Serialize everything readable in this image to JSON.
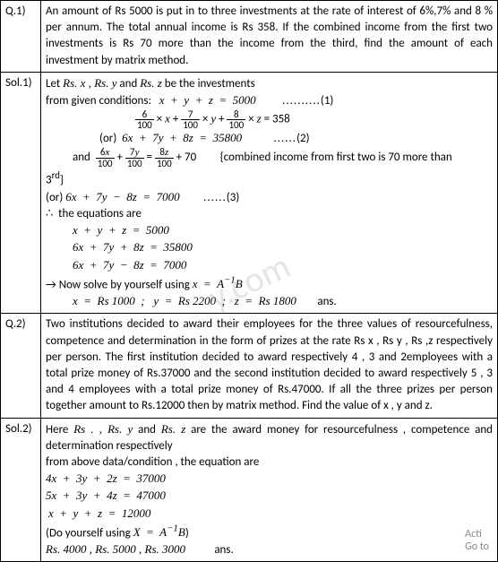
{
  "rows": [
    {
      "label": "Q.1)",
      "lines": [
        "An amount of Rs 5000 is put in to three investments at the rate of interest of 6%,7% and 8 % per annum. The total annual income is Rs 358. If the combined income from the first two investments is Rs 70 more than the income from the third, find the amount of each investment by matrix method."
      ]
    },
    {
      "label": "Sol.1)",
      "lines": [
        "Let <span class='eq'>Rs. x , Rs. y</span> and <span class='eq'>Rs. z</span> be the investments",
        "from given conditions:&nbsp;&nbsp;&nbsp;<span class='eq'>x &nbsp;+&nbsp; y &nbsp;+&nbsp; z &nbsp;=&nbsp; 5000</span>&nbsp;&nbsp;&nbsp;&nbsp;&nbsp;&nbsp;&nbsp;&nbsp;&nbsp;&nbsp;<span class='dotted'>..........</span>(1)",
        "<span class='indent3'></span><span class='frac'><span class='num'>6</span><span class='den'>100</span></span> × <span class='eq'>x</span> + <span class='frac'><span class='num'>7</span><span class='den'>100</span></span> × <span class='eq'>y</span> + <span class='frac'><span class='num'>8</span><span class='den'>100</span></span> × <span class='eq'>z</span> = 358",
        "<span class='indent2'></span>(or)&nbsp;&nbsp;<span class='eq'>6x &nbsp;+&nbsp; 7y &nbsp;+&nbsp; 8z &nbsp;=&nbsp; 35800</span>&nbsp;&nbsp;&nbsp;&nbsp;&nbsp;&nbsp;&nbsp;&nbsp;&nbsp;&nbsp;&nbsp;&nbsp;<span class='dotted'>......</span>(2)",
        "<span class='indent'></span>and&nbsp;&nbsp;<span class='frac'><span class='num'>6<span class='eq'>x</span></span><span class='den'>100</span></span> + <span class='frac'><span class='num'>7<span class='eq'>y</span></span><span class='den'>100</span></span> = <span class='frac'><span class='num'>8<span class='eq'>z</span></span><span class='den'>100</span></span> + 70&nbsp;&nbsp;&nbsp;&nbsp;&nbsp;&nbsp;&nbsp;&nbsp;&nbsp;{combined income from first two is 70 more than",
        "3<sup>rd</sup>}",
        "(or) <span class='eq'>6x &nbsp;+&nbsp; 7y &nbsp;−&nbsp; 8z &nbsp;=&nbsp; 7000</span>&nbsp;&nbsp;&nbsp;&nbsp;&nbsp;&nbsp;&nbsp;&nbsp;&nbsp;<span class='dotted'>......</span>(3)",
        "∴&nbsp;&nbsp;the equations are",
        "<span class='indent'></span><span class='eq'>x &nbsp;+&nbsp; y &nbsp;+&nbsp; z &nbsp;=&nbsp; 5000</span>",
        "<span class='indent'></span><span class='eq'>6x &nbsp;+&nbsp; 7y &nbsp;+&nbsp; 8z &nbsp;=&nbsp; 35800</span>",
        "<span class='indent'></span><span class='eq'>6x &nbsp;+&nbsp; 7y &nbsp;−&nbsp; 8z &nbsp;=&nbsp; 7000</span>",
        "→ Now solve by yourself using <span class='eq'>x &nbsp;=&nbsp; A<sup>−1</sup>B</span>",
        "<span class='indent'></span><span class='eq'>x &nbsp;=&nbsp; Rs 1000 &nbsp;;&nbsp;&nbsp; y &nbsp;=&nbsp; Rs 2200 &nbsp;;&nbsp;&nbsp; z &nbsp;=&nbsp; Rs 1800</span>&nbsp;&nbsp;&nbsp;&nbsp;&nbsp;&nbsp;&nbsp;&nbsp;ans."
      ]
    },
    {
      "label": "Q.2)",
      "lines": [
        "Two institutions decided to award their employees for the three values of resourcefulness, competence and determination in the form of prizes at the rate Rs x , Rs y , Rs ,z respectively per person. The first institution decided to award respectively 4 , 3 and 2employees with a total prize money of Rs.37000 and the second institution decided to award respectively 5 , 3 and 4 employees with a total prize money of Rs.47000. If all the three prizes per person together amount to Rs.12000 then by matrix method. Find the value of x , y and z."
      ]
    },
    {
      "label": "Sol.2)",
      "lines": [
        "Here <span class='eq'>Rs . , Rs. y</span> and <span class='eq'>Rs. z</span> are the award money for resourcefulness , competence and determination respectively",
        "from above data/condition , the equation  are",
        "<span class='eq'>4x &nbsp;+&nbsp; 3y &nbsp;+&nbsp; 2z &nbsp;=&nbsp; 37000</span>",
        "<span class='eq'>5x &nbsp;+&nbsp; 3y &nbsp;+&nbsp; 4z &nbsp;=&nbsp; 47000</span>",
        "&nbsp;<span class='eq'>x &nbsp;+&nbsp; y &nbsp;+&nbsp; z &nbsp;=&nbsp; 12000</span>",
        "(Do yourself using <span class='eq'>X &nbsp;=&nbsp; A<sup>−1</sup>B</span>)",
        "<span class='eq'>Rs. 4000 , Rs. 5000 , Rs. 3000</span>&nbsp;&nbsp;&nbsp;&nbsp;&nbsp;&nbsp;&nbsp;&nbsp;&nbsp;&nbsp;&nbsp;ans."
      ]
    }
  ],
  "watermark": "y.com",
  "corner": {
    "l1": "Acti",
    "l2": "Go to"
  }
}
